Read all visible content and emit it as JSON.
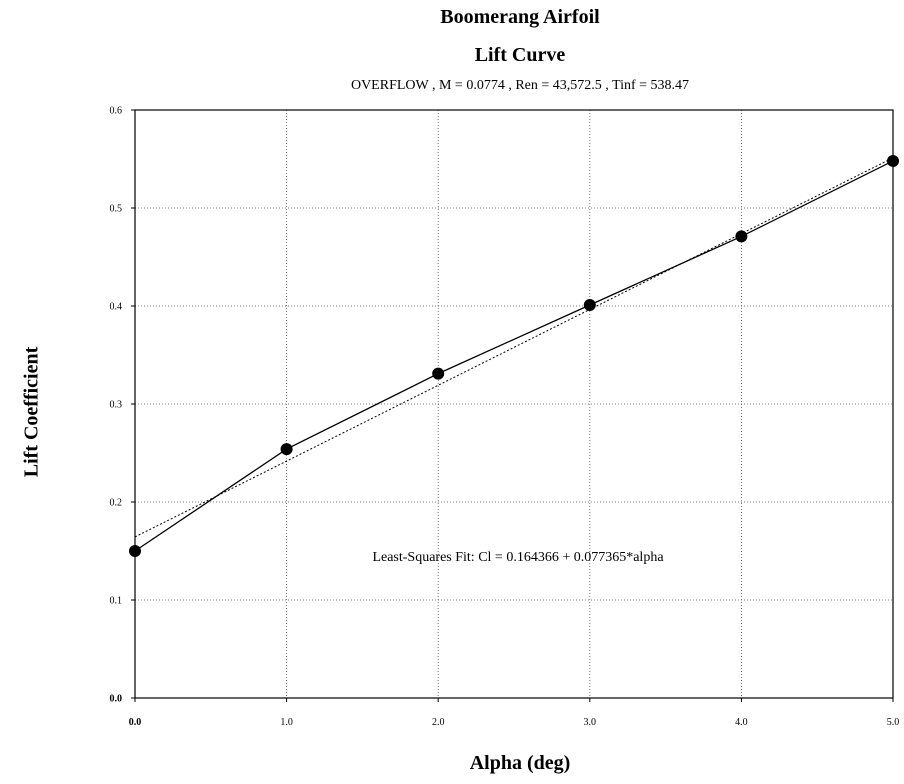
{
  "chart_data": {
    "type": "line",
    "title": "Boomerang Airfoil",
    "subtitle": "Lift Curve",
    "caption": "OVERFLOW , M = 0.0774 , Ren = 43,572.5 , Tinf = 538.47",
    "xlabel": "Alpha (deg)",
    "ylabel": "Lift Coefficient",
    "xlim": [
      0,
      5
    ],
    "ylim": [
      0,
      0.6
    ],
    "x_ticks": [
      "0.0",
      "1.0",
      "2.0",
      "3.0",
      "4.0",
      "5.0"
    ],
    "y_ticks": [
      "0.0",
      "0.1",
      "0.2",
      "0.3",
      "0.4",
      "0.5",
      "0.6"
    ],
    "grid": true,
    "series": [
      {
        "x": [
          0,
          1,
          2,
          3,
          4,
          5
        ],
        "y": [
          0.15,
          0.254,
          0.331,
          0.401,
          0.471,
          0.548
        ],
        "style": "solid",
        "marker": "circle"
      }
    ],
    "fit": {
      "intercept": 0.164366,
      "slope": 0.077365,
      "style": "dotted",
      "label": "Least-Squares Fit:  Cl = 0.164366 + 0.077365*alpha"
    },
    "colors": {
      "line": "#000000",
      "grid": "#555555"
    }
  }
}
